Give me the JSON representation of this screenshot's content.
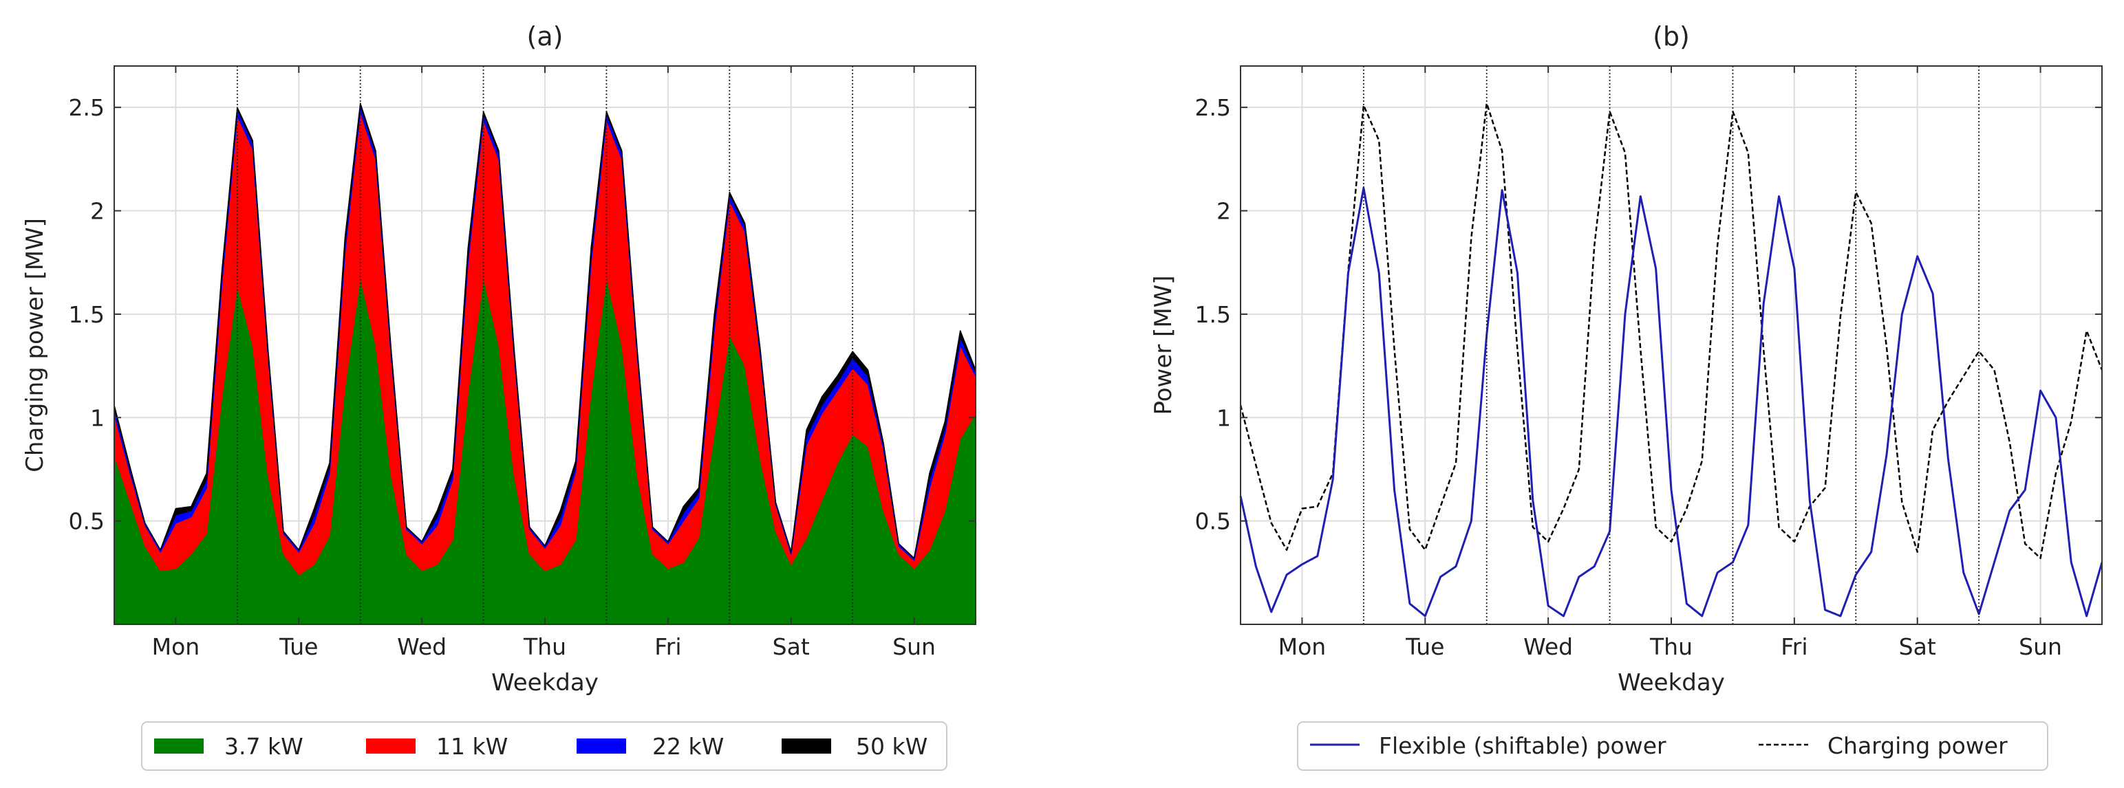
{
  "chart_data": [
    {
      "id": "a",
      "type": "area",
      "stacked": true,
      "title": "(a)",
      "xlabel": "Weekday",
      "ylabel": "Charging power [MW]",
      "categories": [
        "Mon",
        "Tue",
        "Wed",
        "Thu",
        "Fri",
        "Sat",
        "Sun"
      ],
      "x_unit": "hours since Monday 00:00",
      "xlim": [
        0,
        168
      ],
      "ylim": [
        0,
        2.7
      ],
      "yticks": [
        0.5,
        1,
        1.5,
        2,
        2.5
      ],
      "ytick_labels": [
        "0.5",
        "1",
        "1.5",
        "2",
        "2.5"
      ],
      "grid": true,
      "legend_position": "bottom",
      "x": [
        0,
        3,
        6,
        9,
        12,
        15,
        18,
        21,
        24,
        27,
        30,
        33,
        36,
        39,
        42,
        45,
        48,
        51,
        54,
        57,
        60,
        63,
        66,
        69,
        72,
        75,
        78,
        81,
        84,
        87,
        90,
        93,
        96,
        99,
        102,
        105,
        108,
        111,
        114,
        117,
        120,
        123,
        126,
        129,
        132,
        135,
        138,
        141,
        144,
        147,
        150,
        153,
        156,
        159,
        162,
        165,
        168
      ],
      "series": [
        {
          "name": "3.7 kW",
          "color": "#008000",
          "values": [
            0.82,
            0.6,
            0.38,
            0.26,
            0.27,
            0.34,
            0.44,
            1.1,
            1.64,
            1.35,
            0.72,
            0.34,
            0.24,
            0.29,
            0.43,
            1.15,
            1.68,
            1.35,
            0.72,
            0.34,
            0.26,
            0.29,
            0.41,
            1.12,
            1.68,
            1.35,
            0.72,
            0.34,
            0.26,
            0.29,
            0.41,
            1.12,
            1.68,
            1.35,
            0.72,
            0.34,
            0.27,
            0.3,
            0.42,
            0.92,
            1.4,
            1.25,
            0.8,
            0.45,
            0.29,
            0.42,
            0.6,
            0.78,
            0.92,
            0.86,
            0.55,
            0.34,
            0.27,
            0.36,
            0.55,
            0.9,
            1.02
          ]
        },
        {
          "name": "11 kW",
          "color": "#ff0000",
          "values": [
            0.2,
            0.14,
            0.1,
            0.09,
            0.22,
            0.18,
            0.22,
            0.55,
            0.82,
            0.95,
            0.58,
            0.1,
            0.11,
            0.2,
            0.3,
            0.65,
            0.8,
            0.9,
            0.58,
            0.12,
            0.13,
            0.19,
            0.29,
            0.63,
            0.76,
            0.9,
            0.58,
            0.12,
            0.11,
            0.19,
            0.33,
            0.63,
            0.76,
            0.9,
            0.58,
            0.12,
            0.12,
            0.2,
            0.19,
            0.5,
            0.65,
            0.65,
            0.5,
            0.13,
            0.05,
            0.45,
            0.42,
            0.35,
            0.32,
            0.3,
            0.3,
            0.04,
            0.04,
            0.3,
            0.37,
            0.45,
            0.18
          ]
        },
        {
          "name": "22 kW",
          "color": "#0000ff",
          "values": [
            0.03,
            0.02,
            0.01,
            0.01,
            0.04,
            0.03,
            0.04,
            0.04,
            0.03,
            0.03,
            0.02,
            0.01,
            0.01,
            0.04,
            0.03,
            0.04,
            0.03,
            0.03,
            0.02,
            0.01,
            0.01,
            0.04,
            0.03,
            0.04,
            0.03,
            0.03,
            0.02,
            0.01,
            0.01,
            0.04,
            0.03,
            0.04,
            0.03,
            0.03,
            0.02,
            0.01,
            0.01,
            0.04,
            0.03,
            0.04,
            0.03,
            0.03,
            0.02,
            0.01,
            0.01,
            0.04,
            0.04,
            0.04,
            0.05,
            0.04,
            0.02,
            0.01,
            0.01,
            0.04,
            0.03,
            0.04,
            0.02
          ]
        },
        {
          "name": "50 kW",
          "color": "#000000",
          "values": [
            0.01,
            0.01,
            0.0,
            0.0,
            0.03,
            0.02,
            0.03,
            0.02,
            0.01,
            0.01,
            0.01,
            0.0,
            0.0,
            0.03,
            0.02,
            0.03,
            0.01,
            0.01,
            0.01,
            0.0,
            0.0,
            0.03,
            0.02,
            0.03,
            0.01,
            0.01,
            0.01,
            0.0,
            0.0,
            0.03,
            0.02,
            0.03,
            0.01,
            0.01,
            0.01,
            0.0,
            0.0,
            0.03,
            0.02,
            0.03,
            0.01,
            0.01,
            0.01,
            0.0,
            0.0,
            0.03,
            0.04,
            0.03,
            0.03,
            0.03,
            0.01,
            0.0,
            0.0,
            0.03,
            0.03,
            0.03,
            0.01
          ]
        }
      ]
    },
    {
      "id": "b",
      "type": "line",
      "title": "(b)",
      "xlabel": "Weekday",
      "ylabel": "Power [MW]",
      "categories": [
        "Mon",
        "Tue",
        "Wed",
        "Thu",
        "Fri",
        "Sat",
        "Sun"
      ],
      "x_unit": "hours since Monday 00:00",
      "xlim": [
        0,
        168
      ],
      "ylim": [
        0,
        2.7
      ],
      "yticks": [
        0.5,
        1,
        1.5,
        2,
        2.5
      ],
      "ytick_labels": [
        "0.5",
        "1",
        "1.5",
        "2",
        "2.5"
      ],
      "grid": true,
      "legend_position": "bottom",
      "x": [
        0,
        3,
        6,
        9,
        12,
        15,
        18,
        21,
        24,
        27,
        30,
        33,
        36,
        39,
        42,
        45,
        48,
        51,
        54,
        57,
        60,
        63,
        66,
        69,
        72,
        75,
        78,
        81,
        84,
        87,
        90,
        93,
        96,
        99,
        102,
        105,
        108,
        111,
        114,
        117,
        120,
        123,
        126,
        129,
        132,
        135,
        138,
        141,
        144,
        147,
        150,
        153,
        156,
        159,
        162,
        165,
        168
      ],
      "series": [
        {
          "name": "Flexible (shiftable) power",
          "color": "#1f1fb4",
          "style": "solid",
          "values": [
            0.62,
            0.28,
            0.06,
            0.24,
            0.29,
            0.33,
            0.7,
            1.7,
            2.11,
            1.7,
            0.65,
            0.1,
            0.04,
            0.23,
            0.28,
            0.5,
            1.4,
            2.1,
            1.7,
            0.6,
            0.09,
            0.04,
            0.23,
            0.28,
            0.45,
            1.5,
            2.07,
            1.72,
            0.65,
            0.1,
            0.04,
            0.25,
            0.3,
            0.48,
            1.55,
            2.07,
            1.72,
            0.6,
            0.07,
            0.04,
            0.24,
            0.35,
            0.82,
            1.5,
            1.78,
            1.6,
            0.8,
            0.25,
            0.05,
            0.3,
            0.55,
            0.65,
            1.13,
            1.0,
            0.3,
            0.04,
            0.3
          ]
        },
        {
          "name": "Charging power",
          "color": "#000000",
          "style": "dashed",
          "values": [
            1.06,
            0.77,
            0.49,
            0.36,
            0.56,
            0.57,
            0.73,
            1.71,
            2.51,
            2.34,
            1.33,
            0.46,
            0.36,
            0.57,
            0.78,
            1.87,
            2.52,
            2.29,
            1.33,
            0.47,
            0.4,
            0.56,
            0.75,
            1.83,
            2.48,
            2.28,
            1.33,
            0.47,
            0.4,
            0.56,
            0.79,
            1.83,
            2.48,
            2.28,
            1.33,
            0.47,
            0.4,
            0.57,
            0.66,
            1.49,
            2.09,
            1.94,
            1.34,
            0.59,
            0.35,
            0.94,
            1.08,
            1.2,
            1.32,
            1.23,
            0.88,
            0.39,
            0.32,
            0.73,
            0.98,
            1.42,
            1.23
          ]
        }
      ]
    }
  ],
  "legends": {
    "a": [
      {
        "label": "3.7 kW",
        "color": "#008000"
      },
      {
        "label": "11 kW",
        "color": "#ff0000"
      },
      {
        "label": "22 kW",
        "color": "#0000ff"
      },
      {
        "label": "50 kW",
        "color": "#000000"
      }
    ],
    "b": [
      {
        "label": "Flexible (shiftable) power",
        "color": "#1f1fb4",
        "style": "solid"
      },
      {
        "label": "Charging power",
        "color": "#000000",
        "style": "dashed"
      }
    ]
  }
}
